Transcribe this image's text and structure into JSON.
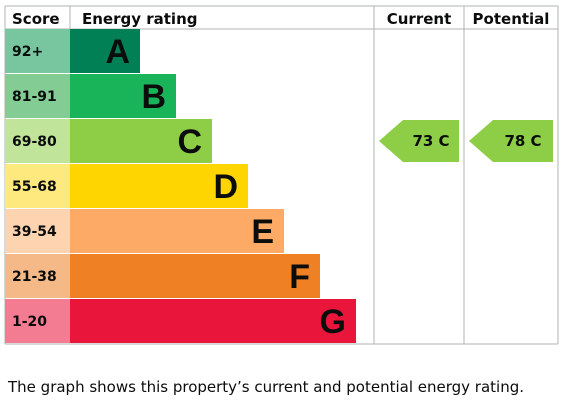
{
  "chart_data": {
    "type": "bar",
    "headers": {
      "score": "Score",
      "rating": "Energy rating",
      "current": "Current",
      "potential": "Potential"
    },
    "bands": [
      {
        "letter": "A",
        "range": "92+",
        "min": 92,
        "max": 100,
        "color": "#008054",
        "score_bg": "#77c69f"
      },
      {
        "letter": "B",
        "range": "81-91",
        "min": 81,
        "max": 91,
        "color": "#19b459",
        "score_bg": "#83cc94"
      },
      {
        "letter": "C",
        "range": "69-80",
        "min": 69,
        "max": 80,
        "color": "#8dce46",
        "score_bg": "#bfe49a"
      },
      {
        "letter": "D",
        "range": "55-68",
        "min": 55,
        "max": 68,
        "color": "#ffd500",
        "score_bg": "#fde97e"
      },
      {
        "letter": "E",
        "range": "39-54",
        "min": 39,
        "max": 54,
        "color": "#fcaa65",
        "score_bg": "#fdd3b0"
      },
      {
        "letter": "F",
        "range": "21-38",
        "min": 21,
        "max": 38,
        "color": "#ef8023",
        "score_bg": "#f5b988"
      },
      {
        "letter": "G",
        "range": "1-20",
        "min": 1,
        "max": 20,
        "color": "#e9153b",
        "score_bg": "#f37b92"
      }
    ],
    "current": {
      "value": 73,
      "band": "C",
      "label": "73 C",
      "color": "#8dce46"
    },
    "potential": {
      "value": 78,
      "band": "C",
      "label": "78 C",
      "color": "#8dce46"
    }
  },
  "caption": "The graph shows this property’s current and potential energy rating."
}
